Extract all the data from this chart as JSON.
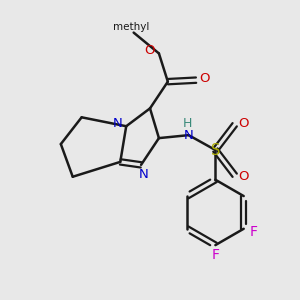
{
  "bg_color": "#e8e8e8",
  "bond_color": "#1a1a1a",
  "N_color": "#0000cc",
  "O_color": "#cc0000",
  "S_color": "#aaaa00",
  "F_color": "#cc00cc",
  "H_color": "#3a8a7a",
  "figsize": [
    3.0,
    3.0
  ],
  "dpi": 100,
  "methyl_label": "methyl",
  "ester_O_label": "O",
  "carbonyl_O_label": "O",
  "NH_H_label": "H",
  "NH_N_label": "N",
  "S_label": "S",
  "SO_top_label": "O",
  "SO_bot_label": "O",
  "F_label": "F",
  "N1_label": "N",
  "N3_label": "N"
}
